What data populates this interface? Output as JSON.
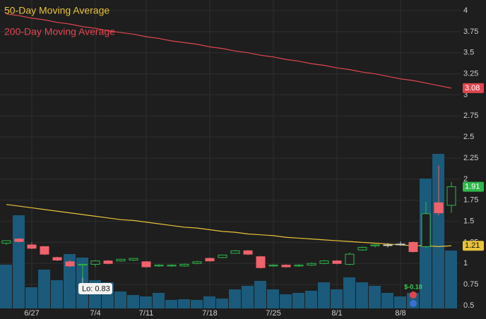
{
  "chart_data": {
    "type": "candlestick",
    "categories": [
      null,
      null,
      "6/27",
      null,
      null,
      null,
      null,
      "7/4",
      null,
      null,
      null,
      "7/11",
      null,
      null,
      null,
      null,
      "7/18",
      null,
      null,
      null,
      null,
      "7/25",
      null,
      null,
      null,
      null,
      "8/1",
      null,
      null,
      null,
      null,
      "8/8",
      null,
      null,
      null,
      null
    ],
    "open": [
      1.24,
      1.29,
      1.22,
      1.2,
      1.07,
      1.02,
      0.98,
      0.99,
      1.03,
      1.03,
      1.04,
      1.02,
      0.97,
      0.97,
      0.97,
      1.0,
      1.06,
      1.07,
      1.12,
      1.15,
      1.08,
      0.97,
      0.98,
      0.97,
      0.98,
      1.0,
      1.03,
      0.99,
      1.16,
      1.21,
      1.22,
      1.23,
      1.25,
      1.2,
      1.72,
      1.69
    ],
    "high": [
      1.27,
      1.3,
      1.25,
      1.2,
      1.08,
      1.04,
      1.0,
      1.04,
      1.04,
      1.05,
      1.06,
      1.03,
      0.99,
      0.99,
      1.0,
      1.03,
      1.07,
      1.1,
      1.16,
      1.16,
      1.09,
      0.99,
      0.99,
      0.99,
      1.01,
      1.04,
      1.04,
      1.13,
      1.2,
      1.22,
      1.24,
      1.26,
      1.26,
      1.73,
      2.16,
      1.97
    ],
    "low": [
      1.22,
      1.25,
      1.17,
      1.1,
      1.03,
      0.96,
      0.83,
      0.96,
      0.99,
      1.02,
      1.03,
      0.95,
      0.96,
      0.96,
      0.96,
      0.99,
      1.02,
      1.06,
      1.12,
      1.1,
      0.94,
      0.96,
      0.95,
      0.96,
      0.97,
      0.99,
      0.99,
      0.98,
      1.15,
      1.19,
      1.19,
      1.21,
      1.13,
      1.18,
      1.57,
      1.6
    ],
    "close": [
      1.27,
      1.26,
      1.18,
      1.11,
      1.04,
      0.97,
      0.99,
      1.03,
      1.0,
      1.05,
      1.06,
      0.96,
      0.98,
      0.98,
      0.99,
      1.02,
      1.03,
      1.1,
      1.15,
      1.11,
      0.95,
      0.98,
      0.96,
      0.98,
      1.0,
      1.03,
      1.0,
      1.11,
      1.19,
      1.22,
      1.22,
      1.23,
      1.14,
      1.59,
      1.6,
      1.91
    ],
    "up_color": "#2fb84a",
    "down_color": "#f0626c",
    "volume": {
      "color": "#1b5a7a",
      "ylim": [
        0,
        120
      ],
      "values": [
        31,
        66,
        15,
        27.5,
        20,
        38.5,
        36,
        20,
        18.5,
        12,
        9.5,
        8.5,
        11,
        6,
        6.5,
        6,
        8.5,
        7,
        13.5,
        16,
        19.5,
        13.5,
        10,
        11,
        12.5,
        18.5,
        13.5,
        22,
        18.5,
        16,
        11,
        8.5,
        11,
        92,
        109.5,
        41
      ]
    },
    "series": [
      {
        "name": "50-Day Moving Average",
        "color": "#e8c23a",
        "values": [
          1.7,
          1.68,
          1.66,
          1.64,
          1.62,
          1.6,
          1.58,
          1.56,
          1.54,
          1.52,
          1.51,
          1.49,
          1.47,
          1.45,
          1.43,
          1.42,
          1.4,
          1.38,
          1.37,
          1.35,
          1.34,
          1.33,
          1.31,
          1.3,
          1.29,
          1.28,
          1.27,
          1.26,
          1.25,
          1.24,
          1.23,
          1.22,
          1.21,
          1.21,
          1.2,
          1.21
        ]
      },
      {
        "name": "200-Day Moving Average",
        "color": "#e0454f",
        "values": [
          3.96,
          3.94,
          3.91,
          3.89,
          3.86,
          3.84,
          3.81,
          3.79,
          3.76,
          3.74,
          3.72,
          3.69,
          3.67,
          3.64,
          3.62,
          3.6,
          3.57,
          3.55,
          3.52,
          3.5,
          3.47,
          3.45,
          3.42,
          3.4,
          3.37,
          3.35,
          3.32,
          3.3,
          3.27,
          3.25,
          3.22,
          3.19,
          3.17,
          3.14,
          3.11,
          3.08
        ]
      }
    ],
    "ylim": [
      0.5,
      4
    ],
    "yticks": [
      0.5,
      0.75,
      1,
      1.25,
      1.5,
      1.75,
      2,
      2.25,
      2.5,
      2.75,
      3,
      3.25,
      3.5,
      3.75,
      4
    ],
    "grid": true,
    "annotations": [
      {
        "text": "Lo: 0.83"
      },
      {
        "text": "$-0.18"
      }
    ]
  }
}
